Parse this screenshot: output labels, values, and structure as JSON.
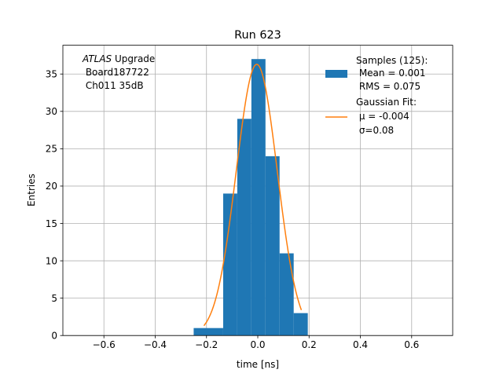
{
  "chart_data": {
    "type": "bar",
    "title": "Run 623",
    "xlabel": "time [ns]",
    "ylabel": "Entries",
    "xlim": [
      -0.76,
      0.76
    ],
    "ylim": [
      0,
      38.85
    ],
    "grid": true,
    "x_ticks": [
      -0.6,
      -0.4,
      -0.2,
      0.0,
      0.2,
      0.4,
      0.6
    ],
    "x_tick_labels": [
      "−0.6",
      "−0.4",
      "−0.2",
      "0.0",
      "0.2",
      "0.4",
      "0.6"
    ],
    "y_ticks": [
      0,
      5,
      10,
      15,
      20,
      25,
      30,
      35
    ],
    "y_tick_labels": [
      "0",
      "5",
      "10",
      "15",
      "20",
      "25",
      "30",
      "35"
    ],
    "histogram": {
      "name": "Samples",
      "color": "#1f77b4",
      "bin_edges": [
        -0.25,
        -0.19,
        -0.135,
        -0.08,
        -0.025,
        0.03,
        0.085,
        0.14,
        0.195
      ],
      "counts": [
        1,
        1,
        19,
        29,
        37,
        24,
        11,
        3
      ]
    },
    "fit": {
      "name": "Gaussian Fit",
      "color": "#ff7f0e",
      "amplitude": 36.3,
      "mu": -0.004,
      "sigma": 0.08,
      "x_range": [
        -0.21,
        0.17
      ]
    },
    "annotation": {
      "italic_part": "ATLAS",
      "line1_rest": " Upgrade",
      "line2": " Board187722",
      "line3": " Ch011 35dB"
    },
    "legend": {
      "placement": "top-right",
      "entries": [
        {
          "series": "histogram",
          "lines": [
            "Samples (125):",
            " Mean = 0.001",
            " RMS = 0.075"
          ]
        },
        {
          "series": "fit",
          "lines": [
            "Gaussian Fit:",
            " μ = -0.004",
            " σ=0.08"
          ]
        }
      ]
    }
  }
}
